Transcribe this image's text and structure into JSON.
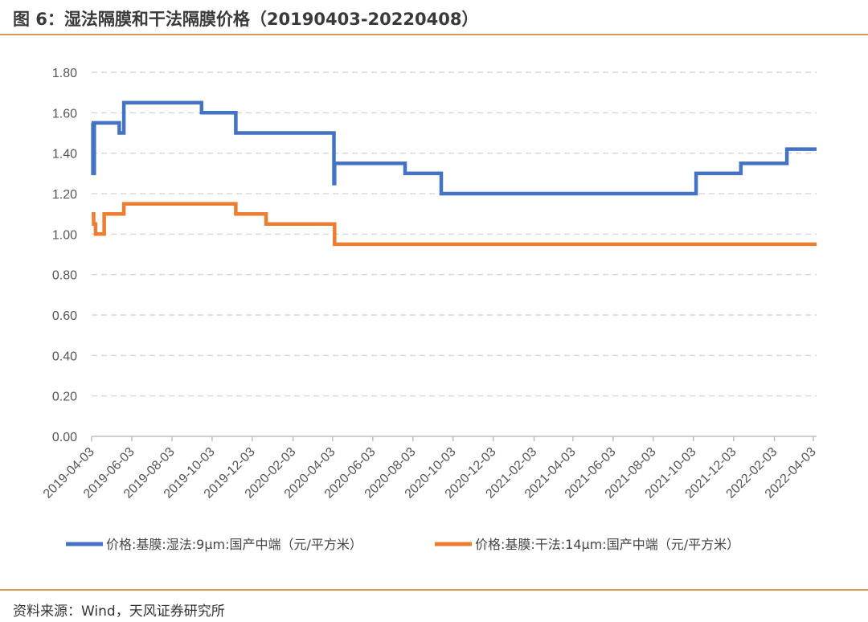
{
  "header": {
    "title": "图 6：湿法隔膜和干法隔膜价格（20190403-20220408）"
  },
  "footer": {
    "source": "资料来源：Wind，天风证券研究所"
  },
  "chart_data": {
    "type": "line",
    "title": "",
    "xlabel": "",
    "ylabel": "",
    "ylim": [
      0,
      1.8
    ],
    "yticks": [
      "0.00",
      "0.20",
      "0.40",
      "0.60",
      "0.80",
      "1.00",
      "1.20",
      "1.40",
      "1.60",
      "1.80"
    ],
    "xticks": [
      "2019-04-03",
      "2019-06-03",
      "2019-08-03",
      "2019-10-03",
      "2019-12-03",
      "2020-02-03",
      "2020-04-03",
      "2020-06-03",
      "2020-08-03",
      "2020-10-03",
      "2020-12-03",
      "2021-02-03",
      "2021-04-03",
      "2021-06-03",
      "2021-08-03",
      "2021-10-03",
      "2021-12-03",
      "2022-02-03",
      "2022-04-03"
    ],
    "xlim": [
      "2019-04-03",
      "2022-04-08"
    ],
    "grid": true,
    "legend_position": "bottom",
    "series": [
      {
        "name": "价格:基膜:湿法:9μm:国产中端（元/平方米）",
        "color": "#4472c4",
        "step": true,
        "points": [
          [
            "2019-04-03",
            1.55
          ],
          [
            "2019-04-05",
            1.3
          ],
          [
            "2019-04-07",
            1.55
          ],
          [
            "2019-05-15",
            1.5
          ],
          [
            "2019-05-22",
            1.65
          ],
          [
            "2019-09-17",
            1.6
          ],
          [
            "2019-11-08",
            1.5
          ],
          [
            "2020-04-05",
            1.25
          ],
          [
            "2020-04-06",
            1.35
          ],
          [
            "2020-07-22",
            1.3
          ],
          [
            "2020-09-15",
            1.2
          ],
          [
            "2021-10-07",
            1.3
          ],
          [
            "2021-12-14",
            1.35
          ],
          [
            "2022-02-22",
            1.42
          ],
          [
            "2022-04-08",
            1.42
          ]
        ]
      },
      {
        "name": "价格:基膜:干法:14μm:国产中端（元/平方米）",
        "color": "#ed7d31",
        "step": true,
        "points": [
          [
            "2019-04-03",
            1.1
          ],
          [
            "2019-04-06",
            1.05
          ],
          [
            "2019-04-09",
            1.0
          ],
          [
            "2019-04-22",
            1.1
          ],
          [
            "2019-05-22",
            1.15
          ],
          [
            "2019-11-08",
            1.1
          ],
          [
            "2019-12-24",
            1.05
          ],
          [
            "2020-04-06",
            0.95
          ],
          [
            "2022-04-08",
            0.95
          ]
        ]
      }
    ]
  }
}
